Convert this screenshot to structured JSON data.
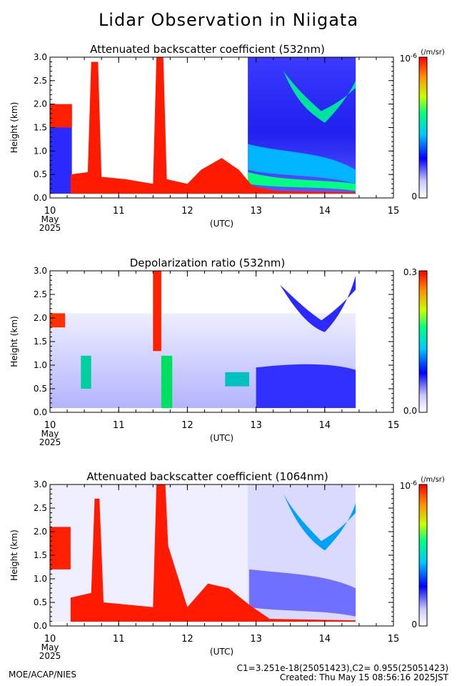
{
  "title": "Lidar Observation in Niigata",
  "footer": {
    "org": "MOE/ACAP/NIES",
    "constants": "C1=3.251e-18(25051423),C2= 0.955(25051423)",
    "created": "Created: Thu May 15 08:56:16 2025JST"
  },
  "chart_data": [
    {
      "type": "heatmap",
      "title": "Attenuated backscatter coefficient (532nm)",
      "ylabel": "Height (km)",
      "xlabel": "(UTC)",
      "x_ticks": [
        "10",
        "11",
        "12",
        "13",
        "14",
        "15"
      ],
      "x_sub": [
        "May",
        "2025"
      ],
      "y_ticks": [
        "0.0",
        "0.5",
        "1.0",
        "1.5",
        "2.0",
        "2.5",
        "3.0"
      ],
      "xlim": [
        10,
        15
      ],
      "ylim": [
        0,
        3
      ],
      "data_end": 14.45,
      "colorbar": {
        "unit": "(/m/sr)",
        "max_label": "10",
        "max_exp": "-6",
        "min_label": "0"
      }
    },
    {
      "type": "heatmap",
      "title": "Depolarization ratio (532nm)",
      "ylabel": "Height (km)",
      "xlabel": "(UTC)",
      "x_ticks": [
        "10",
        "11",
        "12",
        "13",
        "14",
        "15"
      ],
      "x_sub": [
        "May",
        "2025"
      ],
      "y_ticks": [
        "0.0",
        "0.5",
        "1.0",
        "1.5",
        "2.0",
        "2.5",
        "3.0"
      ],
      "xlim": [
        10,
        15
      ],
      "ylim": [
        0,
        3
      ],
      "data_end": 14.45,
      "colorbar": {
        "unit": "",
        "max_label": "0.3",
        "max_exp": "",
        "min_label": "0.0"
      }
    },
    {
      "type": "heatmap",
      "title": "Attenuated backscatter coefficient (1064nm)",
      "ylabel": "Height (km)",
      "xlabel": "(UTC)",
      "x_ticks": [
        "10",
        "11",
        "12",
        "13",
        "14",
        "15"
      ],
      "x_sub": [
        "May",
        "2025"
      ],
      "y_ticks": [
        "0.0",
        "0.5",
        "1.0",
        "1.5",
        "2.0",
        "2.5",
        "3.0"
      ],
      "xlim": [
        10,
        15
      ],
      "ylim": [
        0,
        3
      ],
      "data_end": 14.45,
      "colorbar": {
        "unit": "(/m/sr)",
        "max_label": "10",
        "max_exp": "-6",
        "min_label": "0"
      }
    }
  ]
}
